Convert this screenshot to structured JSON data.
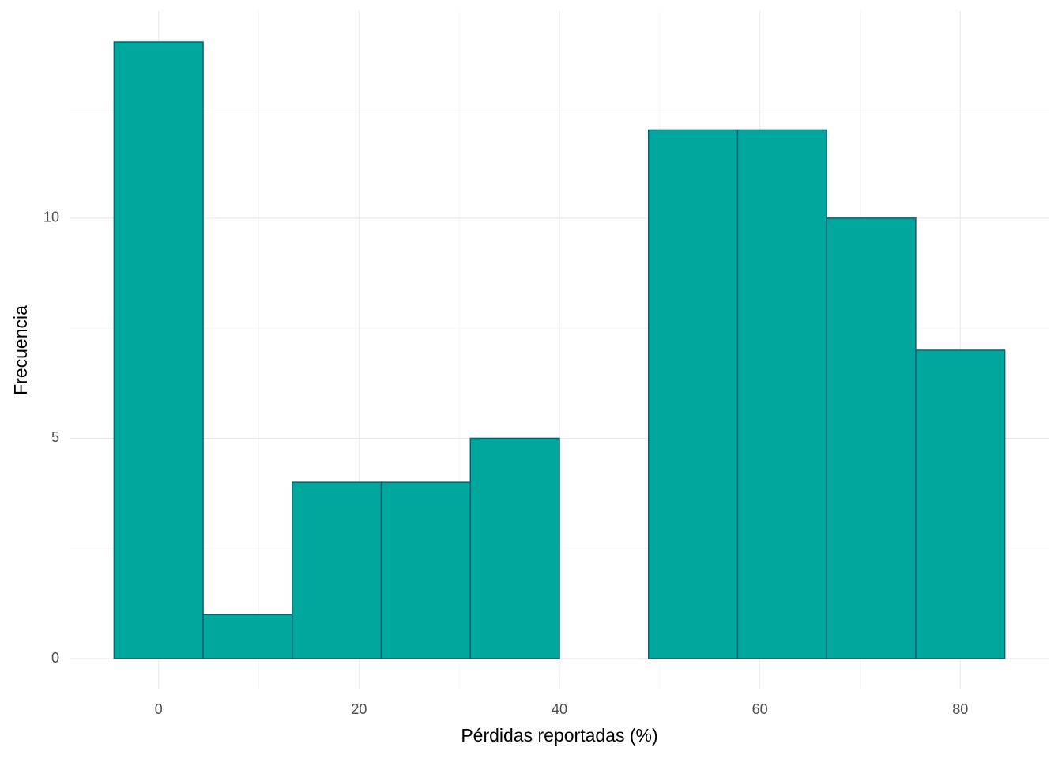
{
  "chart_data": {
    "type": "histogram",
    "xlabel": "Pérdidas reportadas (%)",
    "ylabel": "Frecuencia",
    "bins": [
      -4.444,
      4.444,
      13.333,
      22.222,
      31.111,
      40,
      48.889,
      57.778,
      66.667,
      75.556,
      84.444
    ],
    "counts": [
      14,
      1,
      4,
      4,
      5,
      0,
      12,
      12,
      10,
      7
    ],
    "color": "#00a79d",
    "edgecolor": "#0f5e74",
    "xlim": [
      -8.889,
      88.889
    ],
    "ylim": [
      -0.7,
      14.7
    ],
    "xticks": [
      0,
      20,
      40,
      60,
      80
    ],
    "yticks": [
      0,
      5,
      10
    ],
    "x_minor_grid": [
      10,
      30,
      50,
      70
    ],
    "y_minor_grid": [
      2.5,
      7.5,
      12.5
    ],
    "grid": true
  }
}
